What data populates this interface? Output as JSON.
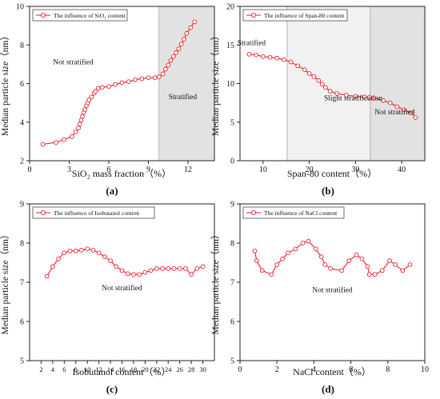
{
  "chart_data": [
    {
      "type": "line",
      "xlabel": "SiO₂ mass fraction（%）",
      "ylabel": "Median particle size（nm）",
      "panel_label": "(a)",
      "xlim": [
        0,
        14
      ],
      "ylim": [
        2,
        10
      ],
      "xticks": [
        0,
        3,
        6,
        9,
        12
      ],
      "yticks": [
        2,
        4,
        6,
        8,
        10
      ],
      "grid": false,
      "legend": {
        "label": "The influence of SiO₂ content",
        "position": "top-left"
      },
      "annotations": [
        {
          "text": "Not stratified",
          "x": 3.3,
          "y": 7.0
        },
        {
          "text": "Stratified",
          "x": 11.6,
          "y": 5.2
        }
      ],
      "shaded_regions": [
        {
          "x0": 9.8,
          "x1": 14,
          "label": "Stratified"
        }
      ],
      "series": [
        {
          "color": "#e8202a",
          "x": [
            1.0,
            2.0,
            2.6,
            3.2,
            3.5,
            3.7,
            3.8,
            3.9,
            4.0,
            4.1,
            4.2,
            4.3,
            4.4,
            4.5,
            4.7,
            4.9,
            5.0,
            5.2,
            5.5,
            6.0,
            6.5,
            7.0,
            7.5,
            8.0,
            8.5,
            9.0,
            9.5,
            9.8,
            10.1,
            10.3,
            10.5,
            10.7,
            10.9,
            11.1,
            11.3,
            11.5,
            11.7,
            11.9,
            12.2,
            12.5
          ],
          "y": [
            2.85,
            2.95,
            3.1,
            3.25,
            3.5,
            3.7,
            3.9,
            4.1,
            4.3,
            4.5,
            4.65,
            4.85,
            5.0,
            5.15,
            5.3,
            5.5,
            5.6,
            5.75,
            5.8,
            5.85,
            5.95,
            6.05,
            6.1,
            6.2,
            6.25,
            6.3,
            6.3,
            6.35,
            6.5,
            6.75,
            6.95,
            7.2,
            7.4,
            7.6,
            7.8,
            8.05,
            8.3,
            8.6,
            8.9,
            9.2
          ]
        }
      ]
    },
    {
      "type": "line",
      "xlabel": "Span-80 content（%）",
      "ylabel": "Median particle size（nm）",
      "panel_label": "(b)",
      "xlim": [
        5,
        45
      ],
      "ylim": [
        0,
        20
      ],
      "xticks": [
        10,
        20,
        30,
        40
      ],
      "yticks": [
        0,
        5,
        10,
        15,
        20
      ],
      "grid": false,
      "legend": {
        "label": "The influence of Span-80 content",
        "position": "top-left"
      },
      "annotations": [
        {
          "text": "Stratified",
          "x": 7.5,
          "y": 15.0
        },
        {
          "text": "Slight stratification",
          "x": 29.5,
          "y": 7.8
        },
        {
          "text": "Not stratified",
          "x": 38.5,
          "y": 6.0
        }
      ],
      "shaded_regions": [
        {
          "x0": 15.2,
          "x1": 33.2,
          "label": "Slight stratification"
        },
        {
          "x0": 33.2,
          "x1": 45,
          "label": "Not stratified"
        }
      ],
      "series": [
        {
          "color": "#e8202a",
          "x": [
            7,
            8.5,
            10,
            11.5,
            13,
            14.5,
            16,
            17.5,
            19,
            20,
            21,
            22,
            22.8,
            23.5,
            24.5,
            26,
            28,
            30,
            32,
            33,
            34,
            36,
            37.5,
            39,
            40.5,
            42,
            43
          ],
          "y": [
            13.8,
            13.7,
            13.5,
            13.4,
            13.3,
            13.1,
            12.8,
            12.3,
            11.8,
            11.3,
            10.9,
            10.4,
            9.9,
            9.5,
            9.0,
            8.7,
            8.5,
            8.35,
            8.25,
            8.2,
            8.1,
            7.8,
            7.5,
            7.0,
            6.6,
            6.2,
            5.6
          ]
        }
      ]
    },
    {
      "type": "line",
      "xlabel": "Isobutanol content（%）",
      "ylabel": "Median particle size（nm）",
      "panel_label": "(c)",
      "xlim": [
        0,
        32
      ],
      "ylim": [
        5,
        9
      ],
      "xticks": [
        2,
        4,
        6,
        8,
        10,
        12,
        14,
        16,
        18,
        20,
        22,
        24,
        26,
        28,
        30
      ],
      "yticks": [
        5,
        6,
        7,
        8,
        9
      ],
      "grid": false,
      "legend": {
        "label": "The influence of Isobutanol content",
        "position": "top-left"
      },
      "annotations": [
        {
          "text": "Not stratified",
          "x": 16.0,
          "y": 6.8
        }
      ],
      "series": [
        {
          "color": "#e8202a",
          "x": [
            3,
            4,
            5,
            6,
            7,
            8,
            9,
            10,
            11,
            12,
            13,
            14,
            15,
            16,
            17,
            18,
            19,
            20,
            21,
            22,
            23,
            24,
            25,
            26,
            27,
            28,
            29,
            30
          ],
          "y": [
            7.15,
            7.4,
            7.6,
            7.75,
            7.8,
            7.8,
            7.82,
            7.85,
            7.82,
            7.75,
            7.65,
            7.55,
            7.4,
            7.3,
            7.22,
            7.2,
            7.2,
            7.25,
            7.3,
            7.35,
            7.35,
            7.35,
            7.35,
            7.35,
            7.35,
            7.2,
            7.35,
            7.4
          ]
        }
      ]
    },
    {
      "type": "line",
      "xlabel": "NaCl content（%）",
      "ylabel": "Median particle size（nm）",
      "panel_label": "(d)",
      "xlim": [
        0,
        10
      ],
      "ylim": [
        5,
        9
      ],
      "xticks": [
        0,
        2,
        4,
        6,
        8,
        10
      ],
      "yticks": [
        5,
        6,
        7,
        8,
        9
      ],
      "grid": false,
      "legend": {
        "label": "The influence of NaCl content",
        "position": "top-left"
      },
      "annotations": [
        {
          "text": "Not stratified",
          "x": 5.0,
          "y": 6.75
        }
      ],
      "series": [
        {
          "color": "#e8202a",
          "x": [
            0.8,
            0.9,
            1.2,
            1.7,
            2.0,
            2.3,
            2.6,
            3.0,
            3.4,
            3.7,
            4.1,
            4.4,
            4.6,
            4.9,
            5.5,
            5.9,
            6.3,
            6.6,
            6.9,
            7.0,
            7.3,
            7.7,
            8.1,
            8.4,
            8.8,
            9.2
          ],
          "y": [
            7.8,
            7.55,
            7.3,
            7.2,
            7.45,
            7.6,
            7.75,
            7.85,
            8.0,
            8.05,
            7.85,
            7.65,
            7.45,
            7.35,
            7.3,
            7.55,
            7.7,
            7.6,
            7.4,
            7.2,
            7.2,
            7.3,
            7.55,
            7.45,
            7.3,
            7.45
          ]
        }
      ]
    }
  ]
}
